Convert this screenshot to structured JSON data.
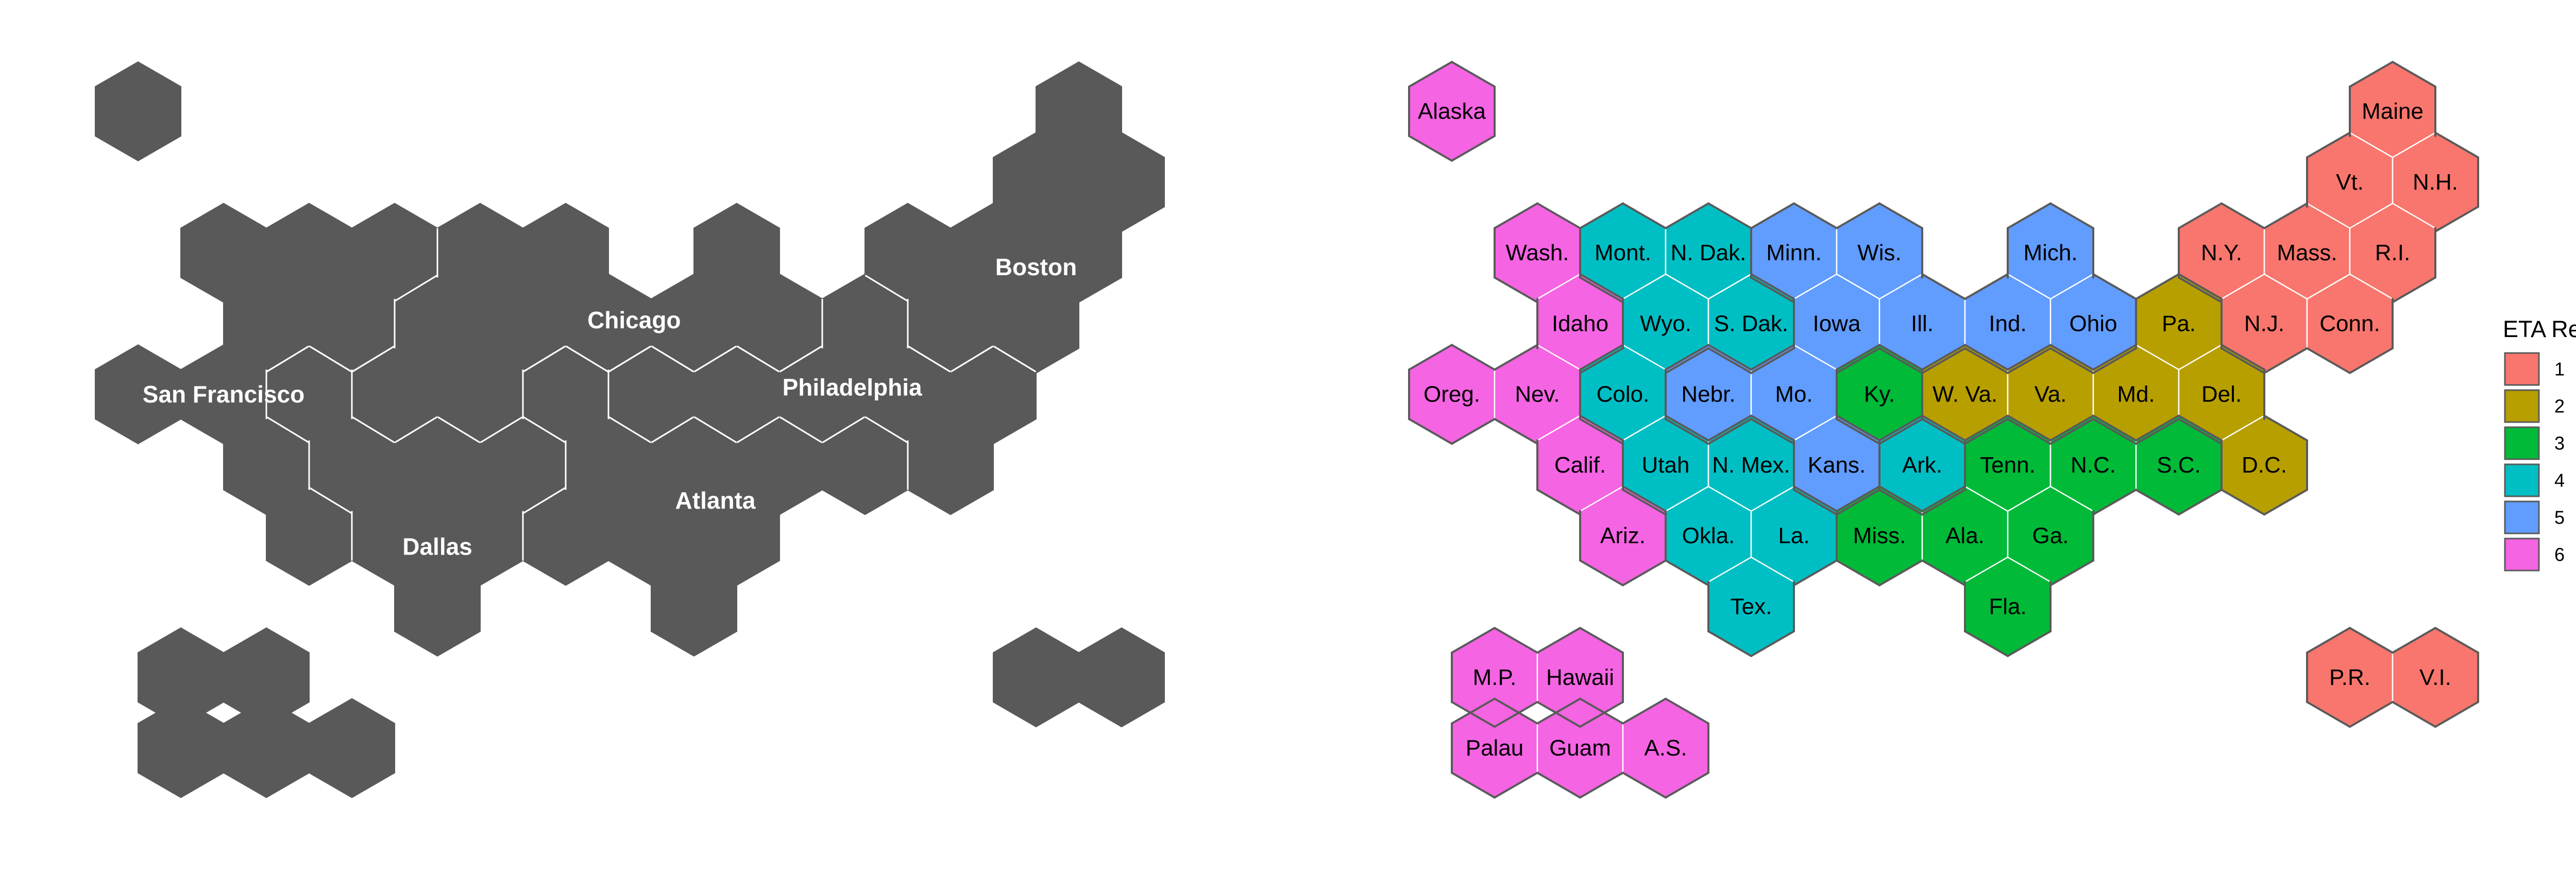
{
  "left_map": {
    "fill_color": "#595959",
    "border_color": "#ffffff",
    "cells": [
      {
        "cell": [
          0,
          0
        ],
        "group": "AK"
      },
      {
        "cell": [
          11,
          0
        ],
        "group": "NE"
      },
      {
        "cell": [
          10,
          1
        ],
        "group": "NE"
      },
      {
        "cell": [
          11,
          1
        ],
        "group": "NE"
      },
      {
        "cell": [
          1,
          2
        ],
        "group": "SF"
      },
      {
        "cell": [
          2,
          2
        ],
        "group": "SF"
      },
      {
        "cell": [
          3,
          2
        ],
        "group": "SF"
      },
      {
        "cell": [
          4,
          2
        ],
        "group": "CHI"
      },
      {
        "cell": [
          5,
          2
        ],
        "group": "CHI"
      },
      {
        "cell": [
          7,
          2
        ],
        "group": "CHI"
      },
      {
        "cell": [
          9,
          2
        ],
        "group": "NE"
      },
      {
        "cell": [
          10,
          2
        ],
        "group": "NE"
      },
      {
        "cell": [
          11,
          2
        ],
        "group": "NE"
      },
      {
        "cell": [
          1,
          3
        ],
        "group": "SF"
      },
      {
        "cell": [
          2,
          3
        ],
        "group": "SF"
      },
      {
        "cell": [
          3,
          3
        ],
        "group": "CHI"
      },
      {
        "cell": [
          4,
          3
        ],
        "group": "CHI"
      },
      {
        "cell": [
          5,
          3
        ],
        "group": "CHI"
      },
      {
        "cell": [
          6,
          3
        ],
        "group": "CHI"
      },
      {
        "cell": [
          7,
          3
        ],
        "group": "CHI"
      },
      {
        "cell": [
          8,
          3
        ],
        "group": "PHL"
      },
      {
        "cell": [
          9,
          3
        ],
        "group": "NE"
      },
      {
        "cell": [
          10,
          3
        ],
        "group": "NE"
      },
      {
        "cell": [
          0,
          4
        ],
        "group": "SF"
      },
      {
        "cell": [
          1,
          4
        ],
        "group": "SF"
      },
      {
        "cell": [
          2,
          4
        ],
        "group": "DAL"
      },
      {
        "cell": [
          3,
          4
        ],
        "group": "CHI"
      },
      {
        "cell": [
          4,
          4
        ],
        "group": "CHI"
      },
      {
        "cell": [
          5,
          4
        ],
        "group": "ATL"
      },
      {
        "cell": [
          6,
          4
        ],
        "group": "PHL"
      },
      {
        "cell": [
          7,
          4
        ],
        "group": "PHL"
      },
      {
        "cell": [
          8,
          4
        ],
        "group": "PHL"
      },
      {
        "cell": [
          9,
          4
        ],
        "group": "PHL"
      },
      {
        "cell": [
          10,
          4
        ],
        "group": "PHL"
      },
      {
        "cell": [
          1,
          5
        ],
        "group": "SF"
      },
      {
        "cell": [
          2,
          5
        ],
        "group": "DAL"
      },
      {
        "cell": [
          3,
          5
        ],
        "group": "DAL"
      },
      {
        "cell": [
          4,
          5
        ],
        "group": "DAL"
      },
      {
        "cell": [
          5,
          5
        ],
        "group": "ATL"
      },
      {
        "cell": [
          6,
          5
        ],
        "group": "ATL"
      },
      {
        "cell": [
          7,
          5
        ],
        "group": "ATL"
      },
      {
        "cell": [
          8,
          5
        ],
        "group": "ATL"
      },
      {
        "cell": [
          9,
          5
        ],
        "group": "PHL"
      },
      {
        "cell": [
          2,
          6
        ],
        "group": "SF"
      },
      {
        "cell": [
          3,
          6
        ],
        "group": "DAL"
      },
      {
        "cell": [
          4,
          6
        ],
        "group": "DAL"
      },
      {
        "cell": [
          5,
          6
        ],
        "group": "ATL"
      },
      {
        "cell": [
          6,
          6
        ],
        "group": "ATL"
      },
      {
        "cell": [
          7,
          6
        ],
        "group": "ATL"
      },
      {
        "cell": [
          3,
          7
        ],
        "group": "DAL"
      },
      {
        "cell": [
          6,
          7
        ],
        "group": "ATL"
      },
      {
        "cell": [
          0.5,
          8
        ],
        "group": "PAC"
      },
      {
        "cell": [
          1.5,
          8
        ],
        "group": "PAC"
      },
      {
        "cell": [
          10.5,
          8
        ],
        "group": "PR"
      },
      {
        "cell": [
          11.5,
          8
        ],
        "group": "PR"
      },
      {
        "cell": [
          0,
          9
        ],
        "group": "PAC"
      },
      {
        "cell": [
          1,
          9
        ],
        "group": "PAC"
      },
      {
        "cell": [
          2,
          9
        ],
        "group": "PAC"
      }
    ],
    "region_labels": [
      {
        "text": "Boston",
        "cell": [
          10.5,
          2.2
        ]
      },
      {
        "text": "Chicago",
        "cell": [
          5.8,
          2.95
        ]
      },
      {
        "text": "San Francisco",
        "cell": [
          1,
          4
        ]
      },
      {
        "text": "Philadelphia",
        "cell": [
          8.35,
          3.9
        ]
      },
      {
        "text": "Atlanta",
        "cell": [
          6.75,
          5.5
        ]
      },
      {
        "text": "Dallas",
        "cell": [
          3.5,
          6.15
        ]
      }
    ]
  },
  "right_map": {
    "border_color": "#5a5a5a",
    "cells": [
      {
        "label": "Alaska",
        "region": "6",
        "cell": [
          0,
          0
        ]
      },
      {
        "label": "Maine",
        "region": "1",
        "cell": [
          11,
          0
        ]
      },
      {
        "label": "Vt.",
        "region": "1",
        "cell": [
          10,
          1
        ]
      },
      {
        "label": "N.H.",
        "region": "1",
        "cell": [
          11,
          1
        ]
      },
      {
        "label": "Wash.",
        "region": "6",
        "cell": [
          1,
          2
        ]
      },
      {
        "label": "Mont.",
        "region": "4",
        "cell": [
          2,
          2
        ]
      },
      {
        "label": "N. Dak.",
        "region": "4",
        "cell": [
          3,
          2
        ]
      },
      {
        "label": "Minn.",
        "region": "5",
        "cell": [
          4,
          2
        ]
      },
      {
        "label": "Wis.",
        "region": "5",
        "cell": [
          5,
          2
        ]
      },
      {
        "label": "Mich.",
        "region": "5",
        "cell": [
          7,
          2
        ]
      },
      {
        "label": "N.Y.",
        "region": "1",
        "cell": [
          9,
          2
        ]
      },
      {
        "label": "Mass.",
        "region": "1",
        "cell": [
          10,
          2
        ]
      },
      {
        "label": "R.I.",
        "region": "1",
        "cell": [
          11,
          2
        ]
      },
      {
        "label": "Idaho",
        "region": "6",
        "cell": [
          1,
          3
        ]
      },
      {
        "label": "Wyo.",
        "region": "4",
        "cell": [
          2,
          3
        ]
      },
      {
        "label": "S. Dak.",
        "region": "4",
        "cell": [
          3,
          3
        ]
      },
      {
        "label": "Iowa",
        "region": "5",
        "cell": [
          4,
          3
        ]
      },
      {
        "label": "Ill.",
        "region": "5",
        "cell": [
          5,
          3
        ]
      },
      {
        "label": "Ind.",
        "region": "5",
        "cell": [
          6,
          3
        ]
      },
      {
        "label": "Ohio",
        "region": "5",
        "cell": [
          7,
          3
        ]
      },
      {
        "label": "Pa.",
        "region": "2",
        "cell": [
          8,
          3
        ]
      },
      {
        "label": "N.J.",
        "region": "1",
        "cell": [
          9,
          3
        ]
      },
      {
        "label": "Conn.",
        "region": "1",
        "cell": [
          10,
          3
        ]
      },
      {
        "label": "Oreg.",
        "region": "6",
        "cell": [
          0,
          4
        ]
      },
      {
        "label": "Nev.",
        "region": "6",
        "cell": [
          1,
          4
        ]
      },
      {
        "label": "Colo.",
        "region": "4",
        "cell": [
          2,
          4
        ]
      },
      {
        "label": "Nebr.",
        "region": "5",
        "cell": [
          3,
          4
        ]
      },
      {
        "label": "Mo.",
        "region": "5",
        "cell": [
          4,
          4
        ]
      },
      {
        "label": "Ky.",
        "region": "3",
        "cell": [
          5,
          4
        ]
      },
      {
        "label": "W. Va.",
        "region": "2",
        "cell": [
          6,
          4
        ]
      },
      {
        "label": "Va.",
        "region": "2",
        "cell": [
          7,
          4
        ]
      },
      {
        "label": "Md.",
        "region": "2",
        "cell": [
          8,
          4
        ]
      },
      {
        "label": "Del.",
        "region": "2",
        "cell": [
          9,
          4
        ]
      },
      {
        "label": "Calif.",
        "region": "6",
        "cell": [
          1,
          5
        ]
      },
      {
        "label": "Utah",
        "region": "4",
        "cell": [
          2,
          5
        ]
      },
      {
        "label": "N. Mex.",
        "region": "4",
        "cell": [
          3,
          5
        ]
      },
      {
        "label": "Kans.",
        "region": "5",
        "cell": [
          4,
          5
        ]
      },
      {
        "label": "Ark.",
        "region": "4",
        "cell": [
          5,
          5
        ]
      },
      {
        "label": "Tenn.",
        "region": "3",
        "cell": [
          6,
          5
        ]
      },
      {
        "label": "N.C.",
        "region": "3",
        "cell": [
          7,
          5
        ]
      },
      {
        "label": "S.C.",
        "region": "3",
        "cell": [
          8,
          5
        ]
      },
      {
        "label": "D.C.",
        "region": "2",
        "cell": [
          9,
          5
        ]
      },
      {
        "label": "Ariz.",
        "region": "6",
        "cell": [
          2,
          6
        ]
      },
      {
        "label": "Okla.",
        "region": "4",
        "cell": [
          3,
          6
        ]
      },
      {
        "label": "La.",
        "region": "4",
        "cell": [
          4,
          6
        ]
      },
      {
        "label": "Miss.",
        "region": "3",
        "cell": [
          5,
          6
        ]
      },
      {
        "label": "Ala.",
        "region": "3",
        "cell": [
          6,
          6
        ]
      },
      {
        "label": "Ga.",
        "region": "3",
        "cell": [
          7,
          6
        ]
      },
      {
        "label": "Tex.",
        "region": "4",
        "cell": [
          3,
          7
        ]
      },
      {
        "label": "Fla.",
        "region": "3",
        "cell": [
          6,
          7
        ]
      },
      {
        "label": "M.P.",
        "region": "6",
        "cell": [
          0.5,
          8
        ]
      },
      {
        "label": "Hawaii",
        "region": "6",
        "cell": [
          1.5,
          8
        ]
      },
      {
        "label": "P.R.",
        "region": "1",
        "cell": [
          10.5,
          8
        ]
      },
      {
        "label": "V.I.",
        "region": "1",
        "cell": [
          11.5,
          8
        ]
      },
      {
        "label": "Palau",
        "region": "6",
        "cell": [
          0,
          9
        ]
      },
      {
        "label": "Guam",
        "region": "6",
        "cell": [
          1,
          9
        ]
      },
      {
        "label": "A.S.",
        "region": "6",
        "cell": [
          2,
          9
        ]
      }
    ]
  },
  "legend": {
    "title": "ETA Region",
    "items": [
      {
        "label": "1",
        "color": "#F8766D"
      },
      {
        "label": "2",
        "color": "#B79F00"
      },
      {
        "label": "3",
        "color": "#00BA38"
      },
      {
        "label": "4",
        "color": "#00BFC4"
      },
      {
        "label": "5",
        "color": "#619CFF"
      },
      {
        "label": "6",
        "color": "#F564E3"
      }
    ]
  }
}
